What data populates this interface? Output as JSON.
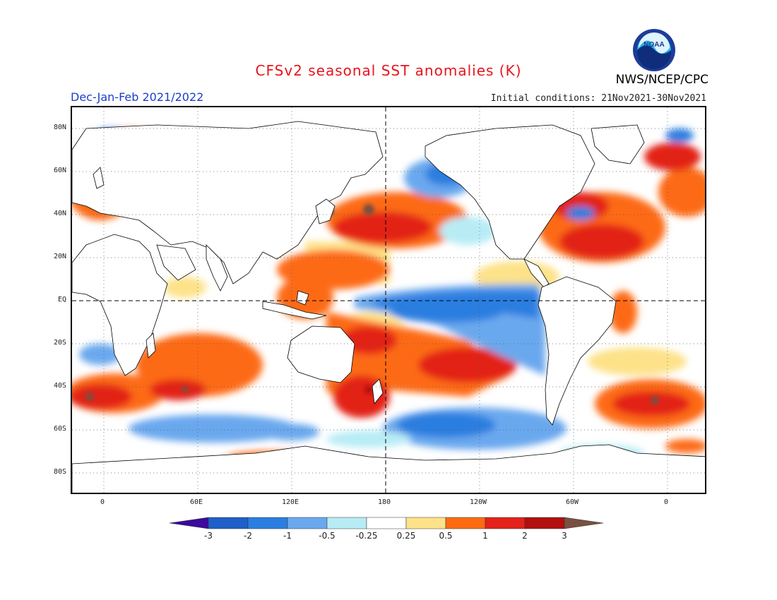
{
  "header": {
    "title": "CFSv2 seasonal SST anomalies (K)",
    "season": "Dec-Jan-Feb 2021/2022",
    "initial_conditions": "Initial conditions: 21Nov2021-30Nov2021",
    "agency": "NWS/NCEP/CPC",
    "logo_text": "NOAA"
  },
  "map": {
    "variable": "sea surface temperature anomaly",
    "units": "K",
    "projection": "equirectangular, centered on 180",
    "lat_ticks": [
      "80N",
      "60N",
      "40N",
      "20N",
      "EQ",
      "20S",
      "40S",
      "60S",
      "80S"
    ],
    "lon_ticks": [
      "0",
      "60E",
      "120E",
      "180",
      "120W",
      "60W",
      "0"
    ],
    "reference_lines": [
      "equator",
      "dateline 180"
    ],
    "grid": "dotted"
  },
  "colorbar": {
    "levels": [
      "-3",
      "-2",
      "-1",
      "-0.5",
      "-0.25",
      "0.25",
      "0.5",
      "1",
      "2",
      "3"
    ],
    "colors": [
      "#3c0a9c",
      "#1f5fc8",
      "#2b7ee0",
      "#6aa8ee",
      "#b8ecf5",
      "#ffffff",
      "#fde289",
      "#fd6a12",
      "#e32219",
      "#b20f0f",
      "#7a5040"
    ]
  },
  "colors": {
    "title": "#e8141c",
    "season": "#1a3ccf",
    "land": "#ffffff",
    "coast": "#000000"
  }
}
